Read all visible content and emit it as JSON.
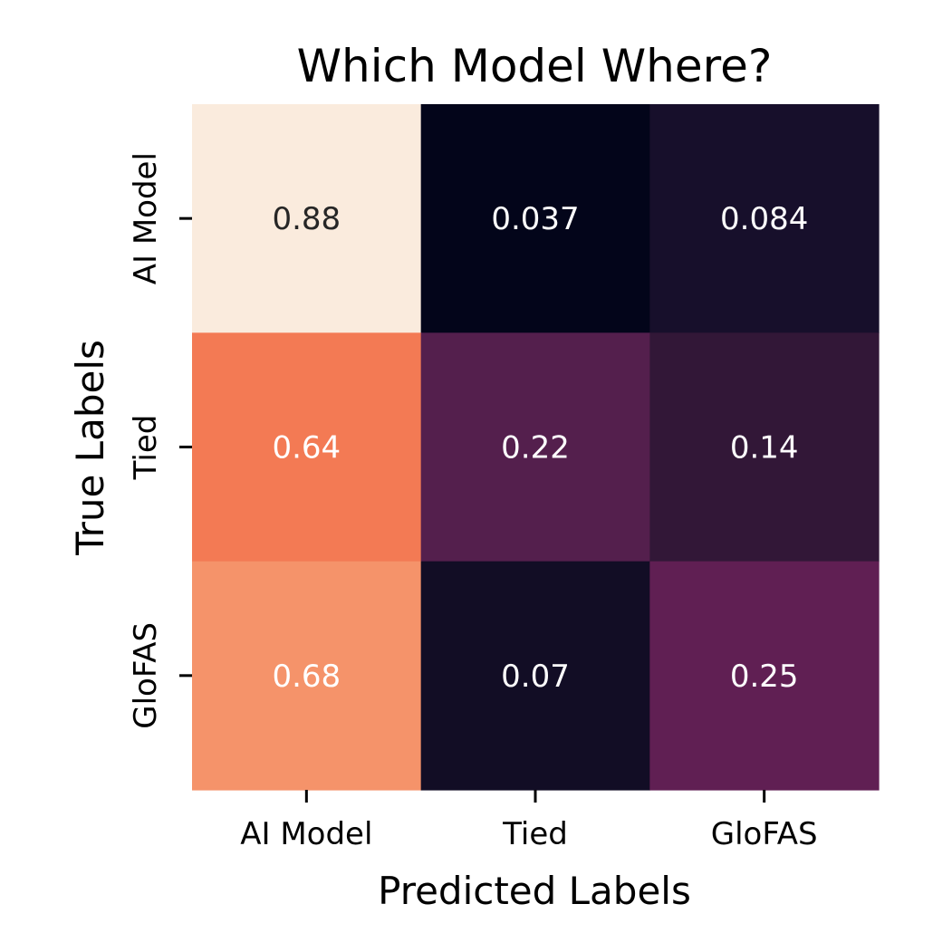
{
  "chart_data": {
    "type": "heatmap",
    "title": "Which Model Where?",
    "xlabel": "Predicted Labels",
    "ylabel": "True Labels",
    "x_categories": [
      "AI Model",
      "Tied",
      "GloFAS"
    ],
    "y_categories": [
      "AI Model",
      "Tied",
      "GloFAS"
    ],
    "values": [
      [
        0.88,
        0.037,
        0.084
      ],
      [
        0.64,
        0.22,
        0.14
      ],
      [
        0.68,
        0.07,
        0.25
      ]
    ],
    "value_labels": [
      [
        "0.88",
        "0.037",
        "0.084"
      ],
      [
        "0.64",
        "0.22",
        "0.14"
      ],
      [
        "0.68",
        "0.07",
        "0.25"
      ]
    ],
    "colormap": "rocket",
    "colorbar": false,
    "cell_colors": [
      [
        "#faebdd",
        "#03051a",
        "#170f2b"
      ],
      [
        "#f37a54",
        "#541f4d",
        "#321737"
      ],
      [
        "#f5936a",
        "#120d25",
        "#601f53"
      ]
    ],
    "text_colors": [
      [
        "#262626",
        "#ffffff",
        "#ffffff"
      ],
      [
        "#ffffff",
        "#ffffff",
        "#ffffff"
      ],
      [
        "#ffffff",
        "#ffffff",
        "#ffffff"
      ]
    ]
  }
}
